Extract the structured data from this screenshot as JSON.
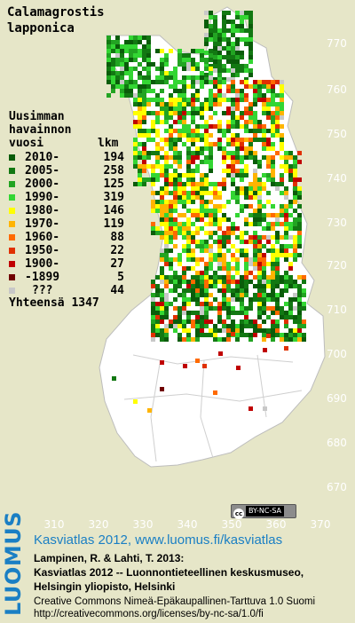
{
  "title": {
    "line1": "Calamagrostis",
    "line2": "lapponica"
  },
  "legend": {
    "heading": [
      "Uusimman",
      "havainnon",
      "vuosi"
    ],
    "count_header": "lkm",
    "items": [
      {
        "label": "2010-",
        "count": "194",
        "color": "#0a5c0a"
      },
      {
        "label": "2005-",
        "count": "258",
        "color": "#127812"
      },
      {
        "label": "2000-",
        "count": "125",
        "color": "#22a422"
      },
      {
        "label": "1990-",
        "count": "319",
        "color": "#33d633"
      },
      {
        "label": "1980-",
        "count": "146",
        "color": "#ffff00"
      },
      {
        "label": "1970-",
        "count": "119",
        "color": "#ffb400"
      },
      {
        "label": "1960-",
        "count": "88",
        "color": "#ff6a00"
      },
      {
        "label": "1950-",
        "count": "22",
        "color": "#e03000"
      },
      {
        "label": "1900-",
        "count": "27",
        "color": "#c00000"
      },
      {
        "label": "-1899",
        "count": "5",
        "color": "#700000"
      },
      {
        "label": "???",
        "count": "44",
        "color": "#c8c8c8"
      }
    ],
    "total_label": "Yhteensä",
    "total_count": "1347"
  },
  "axes": {
    "y_ticks": [
      "770",
      "760",
      "750",
      "740",
      "730",
      "720",
      "710",
      "700",
      "690",
      "680",
      "670"
    ],
    "x_ticks": [
      "310",
      "320",
      "330",
      "340",
      "350",
      "360",
      "370"
    ]
  },
  "license_badge": {
    "cc": "cc",
    "text": "BY-NC-SA"
  },
  "brand": "LUOMUS",
  "site": "Kasviatlas 2012, www.luomus.fi/kasviatlas",
  "citation": [
    "Lampinen, R. & Lahti, T. 2013:",
    "Kasviatlas 2012 -- Luonnontieteellinen keskusmuseo,",
    "Helsingin yliopisto, Helsinki"
  ],
  "license": [
    "Creative Commons Nimeä-Epäkaupallinen-Tarttuva 1.0 Suomi",
    "http://creativecommons.org/licenses/by-nc-sa/1.0/fi"
  ],
  "colors": {
    "background": "#e6e6c8",
    "land": "#ffffff",
    "grid": "#d8d8d8",
    "brand_blue": "#1a7fc4"
  }
}
